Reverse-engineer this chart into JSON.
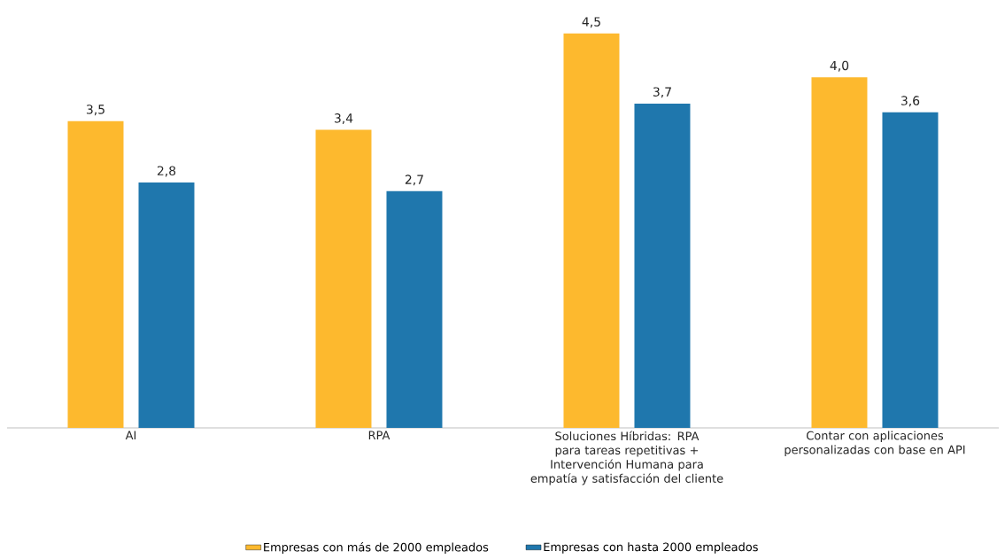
{
  "chart_data": {
    "type": "bar",
    "categories": [
      "AI",
      "RPA",
      "Soluciones Híbridas: RPA para tareas repetitivas + Intervención Humana para empatía y satisfacción del cliente",
      "Contar con aplicaciones personalizadas con base en API"
    ],
    "series": [
      {
        "name": "Empresas con más de 2000 empleados",
        "color": "#fdb92e",
        "values": [
          3.5,
          3.4,
          4.5,
          4.0
        ],
        "value_labels": [
          "3,5",
          "3,4",
          "4,5",
          "4,0"
        ]
      },
      {
        "name": "Empresas con hasta 2000 empleados",
        "color": "#1f77ad",
        "values": [
          2.8,
          2.7,
          3.7,
          3.6
        ],
        "value_labels": [
          "2,8",
          "2,7",
          "3,7",
          "3,6"
        ]
      }
    ],
    "legend": "bottom"
  }
}
